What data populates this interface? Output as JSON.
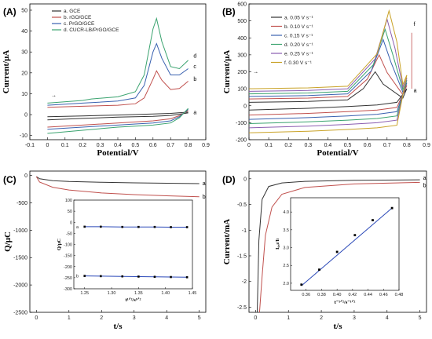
{
  "panels": [
    {
      "id": "A",
      "label": "(A)",
      "type": "line",
      "xlabel": "Potential/V",
      "ylabel": "Current/μA",
      "xlim": [
        -0.1,
        0.9
      ],
      "ylim": [
        -12,
        53
      ],
      "xticks": [
        -0.1,
        0.0,
        0.1,
        0.2,
        0.3,
        0.4,
        0.5,
        0.6,
        0.7,
        0.8,
        0.9
      ],
      "yticks": [
        -10,
        0,
        10,
        20,
        30,
        40,
        50
      ],
      "arrow_label": "→",
      "legend": [
        "a. GCE",
        "b. rGO/GCE",
        "c. PrGO/GCE",
        "d. CUCR-LB/PrGO/GCE"
      ],
      "curve_labels": [
        "a",
        "b",
        "c",
        "d"
      ],
      "colors": [
        "#333333",
        "#c0504d",
        "#3a62b0",
        "#3aa36f"
      ],
      "series": [
        {
          "name": "a. GCE",
          "upper": [
            [
              0,
              -1
            ],
            [
              0.2,
              -0.6
            ],
            [
              0.4,
              -0.2
            ],
            [
              0.6,
              0.3
            ],
            [
              0.7,
              0.6
            ],
            [
              0.8,
              1.2
            ]
          ],
          "lower": [
            [
              0,
              -2.5
            ],
            [
              0.2,
              -1.8
            ],
            [
              0.4,
              -1.2
            ],
            [
              0.6,
              -0.8
            ],
            [
              0.7,
              -0.4
            ],
            [
              0.8,
              0.8
            ]
          ]
        },
        {
          "name": "b. rGO/GCE",
          "upper": [
            [
              0,
              3.5
            ],
            [
              0.2,
              4
            ],
            [
              0.4,
              4.5
            ],
            [
              0.5,
              5.2
            ],
            [
              0.55,
              8
            ],
            [
              0.6,
              17
            ],
            [
              0.62,
              21
            ],
            [
              0.65,
              16.5
            ],
            [
              0.7,
              12
            ],
            [
              0.75,
              12.5
            ],
            [
              0.8,
              16
            ]
          ],
          "lower": [
            [
              0,
              -6
            ],
            [
              0.2,
              -5
            ],
            [
              0.4,
              -4
            ],
            [
              0.5,
              -3.5
            ],
            [
              0.6,
              -3
            ],
            [
              0.7,
              -2
            ],
            [
              0.75,
              -0.5
            ],
            [
              0.8,
              2
            ]
          ]
        },
        {
          "name": "c. PrGO/GCE",
          "upper": [
            [
              0,
              4.5
            ],
            [
              0.2,
              5.5
            ],
            [
              0.4,
              6.5
            ],
            [
              0.5,
              8
            ],
            [
              0.55,
              14
            ],
            [
              0.6,
              30
            ],
            [
              0.62,
              34
            ],
            [
              0.65,
              27
            ],
            [
              0.7,
              19
            ],
            [
              0.75,
              19
            ],
            [
              0.8,
              22
            ]
          ],
          "lower": [
            [
              0,
              -7
            ],
            [
              0.2,
              -6
            ],
            [
              0.4,
              -5
            ],
            [
              0.5,
              -4.5
            ],
            [
              0.6,
              -4
            ],
            [
              0.7,
              -3
            ],
            [
              0.75,
              -1
            ],
            [
              0.8,
              2.5
            ]
          ]
        },
        {
          "name": "d. CUCR-LB/PrGO/GCE",
          "upper": [
            [
              0,
              5.5
            ],
            [
              0.2,
              6.8
            ],
            [
              0.25,
              7.5
            ],
            [
              0.4,
              8.5
            ],
            [
              0.5,
              11
            ],
            [
              0.55,
              19
            ],
            [
              0.6,
              41
            ],
            [
              0.62,
              46
            ],
            [
              0.65,
              35
            ],
            [
              0.7,
              23
            ],
            [
              0.75,
              22
            ],
            [
              0.8,
              26
            ]
          ],
          "lower": [
            [
              0,
              -9
            ],
            [
              0.2,
              -7.5
            ],
            [
              0.4,
              -6
            ],
            [
              0.5,
              -5.5
            ],
            [
              0.6,
              -5
            ],
            [
              0.7,
              -4
            ],
            [
              0.75,
              -1.5
            ],
            [
              0.8,
              3
            ]
          ]
        }
      ]
    },
    {
      "id": "B",
      "label": "(B)",
      "type": "line",
      "xlabel": "Potential/V",
      "ylabel": "Current/μA",
      "xlim": [
        0.0,
        0.9
      ],
      "ylim": [
        -200,
        600
      ],
      "xticks": [
        0.0,
        0.1,
        0.2,
        0.3,
        0.4,
        0.5,
        0.6,
        0.7,
        0.8,
        0.9
      ],
      "yticks": [
        -200,
        -100,
        0,
        100,
        200,
        300,
        400,
        500,
        600
      ],
      "arrow_label": "→",
      "legend": [
        "a. 0.05 V s⁻¹",
        "b. 0.10 V s⁻¹",
        "c. 0.15 V s⁻¹",
        "d. 0.20 V s⁻¹",
        "e. 0.25 V s⁻¹",
        "f. 0.30 V s⁻¹"
      ],
      "curve_labels": [
        "f",
        "a"
      ],
      "colors": [
        "#333333",
        "#c0504d",
        "#3a62b0",
        "#3aa36f",
        "#8a5db0",
        "#c9a227"
      ],
      "series": [
        {
          "name": "a. 0.05 V s⁻¹",
          "peak_x": 0.64,
          "peak_y": 200,
          "base_upper": 20,
          "base_lower": -25
        },
        {
          "name": "b. 0.10 V s⁻¹",
          "peak_x": 0.66,
          "peak_y": 300,
          "base_upper": 40,
          "base_lower": -55
        },
        {
          "name": "c. 0.15 V s⁻¹",
          "peak_x": 0.68,
          "peak_y": 390,
          "base_upper": 55,
          "base_lower": -80
        },
        {
          "name": "d. 0.20 V s⁻¹",
          "peak_x": 0.69,
          "peak_y": 450,
          "base_upper": 70,
          "base_lower": -105
        },
        {
          "name": "e. 0.25 V s⁻¹",
          "peak_x": 0.7,
          "peak_y": 510,
          "base_upper": 85,
          "base_lower": -130
        },
        {
          "name": "f. 0.30 V s⁻¹",
          "peak_x": 0.71,
          "peak_y": 560,
          "base_upper": 100,
          "base_lower": -160
        }
      ]
    },
    {
      "id": "C",
      "label": "(C)",
      "type": "line",
      "xlabel": "t/s",
      "ylabel": "Q/μC",
      "xlim": [
        -0.2,
        5.2
      ],
      "ylim": [
        -2500,
        80
      ],
      "xticks": [
        0,
        1,
        2,
        3,
        4,
        5
      ],
      "yticks": [
        0,
        -500,
        -1000,
        -1500,
        -2000,
        -2500
      ],
      "curve_labels": [
        "a",
        "b"
      ],
      "colors": [
        "#333333",
        "#c0504d"
      ],
      "series": [
        {
          "name": "a",
          "points": [
            [
              0,
              -20
            ],
            [
              0.1,
              -60
            ],
            [
              0.5,
              -95
            ],
            [
              1,
              -110
            ],
            [
              2,
              -125
            ],
            [
              3,
              -135
            ],
            [
              4,
              -142
            ],
            [
              5,
              -150
            ]
          ]
        },
        {
          "name": "b",
          "points": [
            [
              0,
              -20
            ],
            [
              0.1,
              -120
            ],
            [
              0.5,
              -215
            ],
            [
              1,
              -265
            ],
            [
              2,
              -320
            ],
            [
              3,
              -350
            ],
            [
              4,
              -372
            ],
            [
              5,
              -390
            ]
          ]
        }
      ],
      "inset": {
        "xlabel": "t¹ᐟ²/s¹ᐟ²",
        "ylabel": "Q/μC",
        "xlim": [
          1.23,
          1.45
        ],
        "ylim": [
          -300,
          100
        ],
        "xticks": [
          1.25,
          1.3,
          1.35,
          1.4,
          1.45
        ],
        "xtick_labels": [
          "1.25",
          "1.30",
          "1.35",
          "1.40",
          "1.45"
        ],
        "yticks": [
          100,
          50,
          0,
          -50,
          -100,
          -150,
          -200,
          -250,
          -300
        ],
        "curve_labels": [
          "a",
          "b"
        ],
        "series": [
          {
            "name": "a",
            "points": [
              [
                1.25,
                -20
              ],
              [
                1.28,
                -20
              ],
              [
                1.32,
                -21
              ],
              [
                1.35,
                -21
              ],
              [
                1.38,
                -21
              ],
              [
                1.41,
                -22
              ],
              [
                1.44,
                -22
              ]
            ]
          },
          {
            "name": "b",
            "points": [
              [
                1.25,
                -242
              ],
              [
                1.28,
                -243
              ],
              [
                1.32,
                -244
              ],
              [
                1.35,
                -245
              ],
              [
                1.38,
                -246
              ],
              [
                1.41,
                -247
              ],
              [
                1.44,
                -248
              ]
            ]
          }
        ]
      }
    },
    {
      "id": "D",
      "label": "(D)",
      "type": "line",
      "xlabel": "t/s",
      "ylabel": "Current/mA",
      "xlim": [
        -0.2,
        5.2
      ],
      "ylim": [
        -2.6,
        0.15
      ],
      "xticks": [
        0,
        1,
        2,
        3,
        4,
        5
      ],
      "yticks": [
        0,
        -0.5,
        -1,
        -1.5,
        -2,
        -2.5
      ],
      "ytick_labels": [
        "0",
        "-0.5",
        "-1",
        "-1.5",
        "-2",
        "-2.5"
      ],
      "curve_labels": [
        "a",
        "b"
      ],
      "colors": [
        "#333333",
        "#c0504d"
      ],
      "series": [
        {
          "name": "a",
          "points": [
            [
              0.05,
              -2.6
            ],
            [
              0.1,
              -1.2
            ],
            [
              0.2,
              -0.4
            ],
            [
              0.4,
              -0.15
            ],
            [
              0.8,
              -0.08
            ],
            [
              1.5,
              -0.05
            ],
            [
              3,
              -0.03
            ],
            [
              5,
              -0.02
            ]
          ]
        },
        {
          "name": "b",
          "points": [
            [
              0.12,
              -2.6
            ],
            [
              0.2,
              -1.9
            ],
            [
              0.3,
              -1.1
            ],
            [
              0.5,
              -0.55
            ],
            [
              0.8,
              -0.3
            ],
            [
              1.5,
              -0.17
            ],
            [
              3,
              -0.1
            ],
            [
              5,
              -0.07
            ]
          ]
        }
      ],
      "inset": {
        "xlabel": "t⁻¹ᐟ²/s⁻¹ᐟ²",
        "ylabel": "I꜀ₐₜ/Iₗ",
        "xlim": [
          0.34,
          0.48
        ],
        "ylim": [
          1.8,
          4.4
        ],
        "xticks": [
          0.36,
          0.38,
          0.4,
          0.42,
          0.44,
          0.46,
          0.48
        ],
        "xtick_labels": [
          "0.36",
          "0.38",
          "0.40",
          "0.42",
          "0.44",
          "0.46",
          "0.48"
        ],
        "yticks": [
          2.0,
          2.5,
          3.0,
          3.5,
          4.0
        ],
        "ytick_labels": [
          "2.0",
          "2.5",
          "3.0",
          "3.5",
          "4.0"
        ],
        "points": [
          [
            0.354,
            1.96
          ],
          [
            0.377,
            2.38
          ],
          [
            0.4,
            2.88
          ],
          [
            0.423,
            3.35
          ],
          [
            0.446,
            3.77
          ],
          [
            0.471,
            4.11
          ]
        ],
        "fit": [
          [
            0.354,
            1.93
          ],
          [
            0.472,
            4.13
          ]
        ]
      }
    }
  ]
}
